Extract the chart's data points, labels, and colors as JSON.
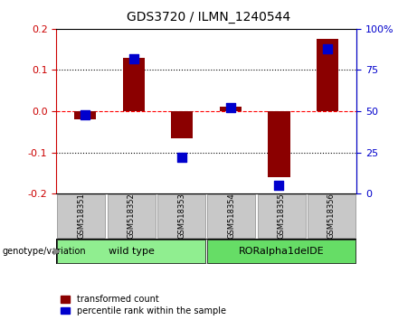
{
  "title": "GDS3720 / ILMN_1240544",
  "samples": [
    "GSM518351",
    "GSM518352",
    "GSM518353",
    "GSM518354",
    "GSM518355",
    "GSM518356"
  ],
  "transformed_count": [
    -0.02,
    0.13,
    -0.065,
    0.01,
    -0.16,
    0.175
  ],
  "percentile_rank": [
    48,
    82,
    22,
    52,
    5,
    88
  ],
  "groups": [
    {
      "label": "wild type",
      "color": "#90EE90"
    },
    {
      "label": "RORalpha1delDE",
      "color": "#66DD66"
    }
  ],
  "ylim_left": [
    -0.2,
    0.2
  ],
  "ylim_right": [
    0,
    100
  ],
  "yticks_left": [
    -0.2,
    -0.1,
    0.0,
    0.1,
    0.2
  ],
  "yticks_right": [
    0,
    25,
    50,
    75,
    100
  ],
  "hline_y": 0,
  "dotted_lines": [
    -0.1,
    0.1
  ],
  "bar_color": "#8B0000",
  "dot_color": "#0000CD",
  "bar_width": 0.45,
  "dot_size": 45,
  "left_axis_color": "#CC0000",
  "right_axis_color": "#0000CC",
  "bg_plot": "#FFFFFF",
  "bg_label": "#C8C8C8",
  "genotype_label": "genotype/variation",
  "legend1": "transformed count",
  "legend2": "percentile rank within the sample"
}
